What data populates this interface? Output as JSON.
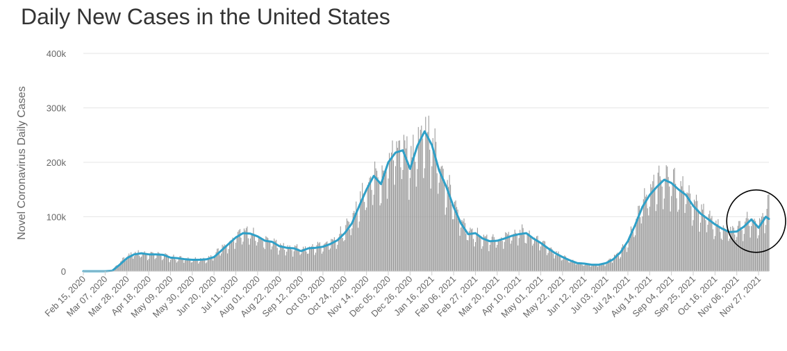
{
  "chart_data": {
    "type": "bar",
    "title": "Daily New Cases in the United States",
    "xlabel": "",
    "ylabel": "Novel Coronavirus Daily Cases",
    "ylim": [
      0,
      400000
    ],
    "y_ticks": [
      {
        "value": 0,
        "label": "0"
      },
      {
        "value": 100000,
        "label": "100k"
      },
      {
        "value": 200000,
        "label": "200k"
      },
      {
        "value": 300000,
        "label": "300k"
      },
      {
        "value": 400000,
        "label": "400k"
      }
    ],
    "x_range": [
      "2020-02-15",
      "2021-12-07"
    ],
    "x_tick_labels": [
      "Feb 15, 2020",
      "Mar 07, 2020",
      "Mar 28, 2020",
      "Apr 18, 2020",
      "May 09, 2020",
      "May 30, 2020",
      "Jun 20, 2020",
      "Jul 11, 2020",
      "Aug 01, 2020",
      "Aug 22, 2020",
      "Sep 12, 2020",
      "Oct 03, 2020",
      "Oct 24, 2020",
      "Nov 14, 2020",
      "Dec 05, 2020",
      "Dec 26, 2020",
      "Jan 16, 2021",
      "Feb 06, 2021",
      "Feb 27, 2021",
      "Mar 20, 2021",
      "Apr 10, 2021",
      "May 01, 2021",
      "May 22, 2021",
      "Jun 12, 2021",
      "Jul 03, 2021",
      "Jul 24, 2021",
      "Aug 14, 2021",
      "Sep 04, 2021",
      "Sep 25, 2021",
      "Oct 16, 2021",
      "Nov 06, 2021",
      "Nov 27, 2021"
    ],
    "series": [
      {
        "kind": "bar",
        "color": "#999999",
        "points": [
          [
            "2020-02-15",
            0
          ],
          [
            "2020-03-07",
            0
          ],
          [
            "2020-03-14",
            2000
          ],
          [
            "2020-03-21",
            15000
          ],
          [
            "2020-03-28",
            26000
          ],
          [
            "2020-04-04",
            31000
          ],
          [
            "2020-04-11",
            33000
          ],
          [
            "2020-04-18",
            30000
          ],
          [
            "2020-04-25",
            31000
          ],
          [
            "2020-05-02",
            29000
          ],
          [
            "2020-05-09",
            25000
          ],
          [
            "2020-05-16",
            23000
          ],
          [
            "2020-05-23",
            22000
          ],
          [
            "2020-05-30",
            21000
          ],
          [
            "2020-06-06",
            21000
          ],
          [
            "2020-06-13",
            22000
          ],
          [
            "2020-06-20",
            28000
          ],
          [
            "2020-06-27",
            40000
          ],
          [
            "2020-07-04",
            50000
          ],
          [
            "2020-07-11",
            62000
          ],
          [
            "2020-07-18",
            70000
          ],
          [
            "2020-07-25",
            67000
          ],
          [
            "2020-08-01",
            62000
          ],
          [
            "2020-08-08",
            55000
          ],
          [
            "2020-08-15",
            52000
          ],
          [
            "2020-08-22",
            45000
          ],
          [
            "2020-08-29",
            42000
          ],
          [
            "2020-09-05",
            41000
          ],
          [
            "2020-09-12",
            38000
          ],
          [
            "2020-09-19",
            42000
          ],
          [
            "2020-09-26",
            44000
          ],
          [
            "2020-10-03",
            45000
          ],
          [
            "2020-10-10",
            52000
          ],
          [
            "2020-10-17",
            58000
          ],
          [
            "2020-10-24",
            75000
          ],
          [
            "2020-10-31",
            90000
          ],
          [
            "2020-11-07",
            120000
          ],
          [
            "2020-11-14",
            150000
          ],
          [
            "2020-11-21",
            172000
          ],
          [
            "2020-11-28",
            160000
          ],
          [
            "2020-12-05",
            200000
          ],
          [
            "2020-12-12",
            218000
          ],
          [
            "2020-12-19",
            225000
          ],
          [
            "2020-12-26",
            190000
          ],
          [
            "2021-01-02",
            225000
          ],
          [
            "2021-01-09",
            255000
          ],
          [
            "2021-01-16",
            230000
          ],
          [
            "2021-01-23",
            185000
          ],
          [
            "2021-01-30",
            155000
          ],
          [
            "2021-02-06",
            120000
          ],
          [
            "2021-02-13",
            90000
          ],
          [
            "2021-02-20",
            70000
          ],
          [
            "2021-02-27",
            68000
          ],
          [
            "2021-03-06",
            60000
          ],
          [
            "2021-03-13",
            55000
          ],
          [
            "2021-03-20",
            55000
          ],
          [
            "2021-03-27",
            60000
          ],
          [
            "2021-04-03",
            65000
          ],
          [
            "2021-04-10",
            70000
          ],
          [
            "2021-04-17",
            68000
          ],
          [
            "2021-04-24",
            60000
          ],
          [
            "2021-05-01",
            52000
          ],
          [
            "2021-05-08",
            42000
          ],
          [
            "2021-05-15",
            33000
          ],
          [
            "2021-05-22",
            26000
          ],
          [
            "2021-05-29",
            20000
          ],
          [
            "2021-06-05",
            15000
          ],
          [
            "2021-06-12",
            13000
          ],
          [
            "2021-06-19",
            11000
          ],
          [
            "2021-06-26",
            12000
          ],
          [
            "2021-07-03",
            15000
          ],
          [
            "2021-07-10",
            24000
          ],
          [
            "2021-07-17",
            35000
          ],
          [
            "2021-07-24",
            55000
          ],
          [
            "2021-07-31",
            85000
          ],
          [
            "2021-08-07",
            120000
          ],
          [
            "2021-08-14",
            140000
          ],
          [
            "2021-08-21",
            155000
          ],
          [
            "2021-08-28",
            165000
          ],
          [
            "2021-09-04",
            160000
          ],
          [
            "2021-09-11",
            150000
          ],
          [
            "2021-09-18",
            140000
          ],
          [
            "2021-09-25",
            120000
          ],
          [
            "2021-10-02",
            105000
          ],
          [
            "2021-10-09",
            95000
          ],
          [
            "2021-10-16",
            85000
          ],
          [
            "2021-10-23",
            75000
          ],
          [
            "2021-10-30",
            70000
          ],
          [
            "2021-11-06",
            75000
          ],
          [
            "2021-11-13",
            85000
          ],
          [
            "2021-11-20",
            95000
          ],
          [
            "2021-11-27",
            80000
          ],
          [
            "2021-12-04",
            110000
          ],
          [
            "2021-12-07",
            128000
          ]
        ]
      },
      {
        "kind": "line",
        "color": "#2fa0c8",
        "points": [
          [
            "2020-02-15",
            0
          ],
          [
            "2020-03-07",
            0
          ],
          [
            "2020-03-14",
            1000
          ],
          [
            "2020-03-21",
            12000
          ],
          [
            "2020-03-28",
            24000
          ],
          [
            "2020-04-04",
            31000
          ],
          [
            "2020-04-11",
            33000
          ],
          [
            "2020-04-18",
            31000
          ],
          [
            "2020-04-25",
            31000
          ],
          [
            "2020-05-02",
            30000
          ],
          [
            "2020-05-09",
            25000
          ],
          [
            "2020-05-16",
            24000
          ],
          [
            "2020-05-23",
            22000
          ],
          [
            "2020-05-30",
            21000
          ],
          [
            "2020-06-06",
            21000
          ],
          [
            "2020-06-13",
            22000
          ],
          [
            "2020-06-20",
            26000
          ],
          [
            "2020-06-27",
            38000
          ],
          [
            "2020-07-04",
            50000
          ],
          [
            "2020-07-11",
            62000
          ],
          [
            "2020-07-18",
            70000
          ],
          [
            "2020-07-25",
            69000
          ],
          [
            "2020-08-01",
            64000
          ],
          [
            "2020-08-08",
            56000
          ],
          [
            "2020-08-15",
            54000
          ],
          [
            "2020-08-22",
            46000
          ],
          [
            "2020-08-29",
            43000
          ],
          [
            "2020-09-05",
            42000
          ],
          [
            "2020-09-12",
            37000
          ],
          [
            "2020-09-19",
            42000
          ],
          [
            "2020-09-26",
            43000
          ],
          [
            "2020-10-03",
            45000
          ],
          [
            "2020-10-10",
            50000
          ],
          [
            "2020-10-17",
            57000
          ],
          [
            "2020-10-24",
            70000
          ],
          [
            "2020-10-31",
            88000
          ],
          [
            "2020-11-07",
            120000
          ],
          [
            "2020-11-14",
            150000
          ],
          [
            "2020-11-21",
            175000
          ],
          [
            "2020-11-28",
            160000
          ],
          [
            "2020-12-05",
            200000
          ],
          [
            "2020-12-12",
            218000
          ],
          [
            "2020-12-19",
            222000
          ],
          [
            "2020-12-26",
            188000
          ],
          [
            "2021-01-02",
            230000
          ],
          [
            "2021-01-09",
            257000
          ],
          [
            "2021-01-16",
            232000
          ],
          [
            "2021-01-23",
            185000
          ],
          [
            "2021-01-30",
            155000
          ],
          [
            "2021-02-06",
            118000
          ],
          [
            "2021-02-13",
            88000
          ],
          [
            "2021-02-20",
            68000
          ],
          [
            "2021-02-27",
            70000
          ],
          [
            "2021-03-06",
            60000
          ],
          [
            "2021-03-13",
            55000
          ],
          [
            "2021-03-20",
            56000
          ],
          [
            "2021-03-27",
            60000
          ],
          [
            "2021-04-03",
            65000
          ],
          [
            "2021-04-10",
            68000
          ],
          [
            "2021-04-17",
            70000
          ],
          [
            "2021-04-24",
            60000
          ],
          [
            "2021-05-01",
            52000
          ],
          [
            "2021-05-08",
            42000
          ],
          [
            "2021-05-15",
            33000
          ],
          [
            "2021-05-22",
            26000
          ],
          [
            "2021-05-29",
            20000
          ],
          [
            "2021-06-05",
            15000
          ],
          [
            "2021-06-12",
            14000
          ],
          [
            "2021-06-19",
            12000
          ],
          [
            "2021-06-26",
            12000
          ],
          [
            "2021-07-03",
            15000
          ],
          [
            "2021-07-10",
            22000
          ],
          [
            "2021-07-17",
            35000
          ],
          [
            "2021-07-24",
            55000
          ],
          [
            "2021-07-31",
            85000
          ],
          [
            "2021-08-07",
            118000
          ],
          [
            "2021-08-14",
            140000
          ],
          [
            "2021-08-21",
            155000
          ],
          [
            "2021-08-28",
            168000
          ],
          [
            "2021-09-04",
            162000
          ],
          [
            "2021-09-11",
            150000
          ],
          [
            "2021-09-18",
            140000
          ],
          [
            "2021-09-25",
            120000
          ],
          [
            "2021-10-02",
            106000
          ],
          [
            "2021-10-09",
            96000
          ],
          [
            "2021-10-16",
            86000
          ],
          [
            "2021-10-23",
            78000
          ],
          [
            "2021-10-30",
            72000
          ],
          [
            "2021-11-06",
            73000
          ],
          [
            "2021-11-13",
            82000
          ],
          [
            "2021-11-20",
            95000
          ],
          [
            "2021-11-27",
            80000
          ],
          [
            "2021-12-04",
            100000
          ],
          [
            "2021-12-07",
            96000
          ]
        ]
      }
    ],
    "annotations": [
      {
        "type": "circle",
        "around": [
          "2021-10-30",
          "2021-12-07"
        ]
      }
    ],
    "grid": true,
    "legend": "none"
  }
}
